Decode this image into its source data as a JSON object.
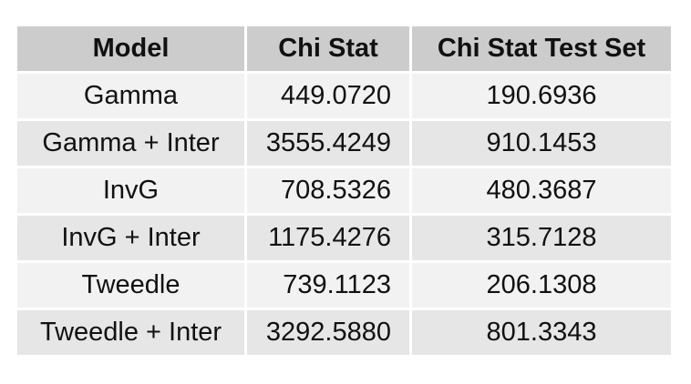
{
  "table": {
    "headers": [
      "Model",
      "Chi Stat",
      "Chi Stat Test Set"
    ],
    "rows": [
      [
        "Gamma",
        "449.0720",
        "190.6936"
      ],
      [
        "Gamma + Inter",
        "3555.4249",
        "910.1453"
      ],
      [
        "InvG",
        "708.5326",
        "480.3687"
      ],
      [
        "InvG + Inter",
        "1175.4276",
        "315.7128"
      ],
      [
        "Tweedle",
        "739.1123",
        "206.1308"
      ],
      [
        "Tweedle + Inter",
        "3292.5880",
        "801.3343"
      ]
    ]
  },
  "colors": {
    "header_bg": "#cccccc",
    "row_odd_bg": "#f2f2f2",
    "row_even_bg": "#e6e6e6"
  }
}
